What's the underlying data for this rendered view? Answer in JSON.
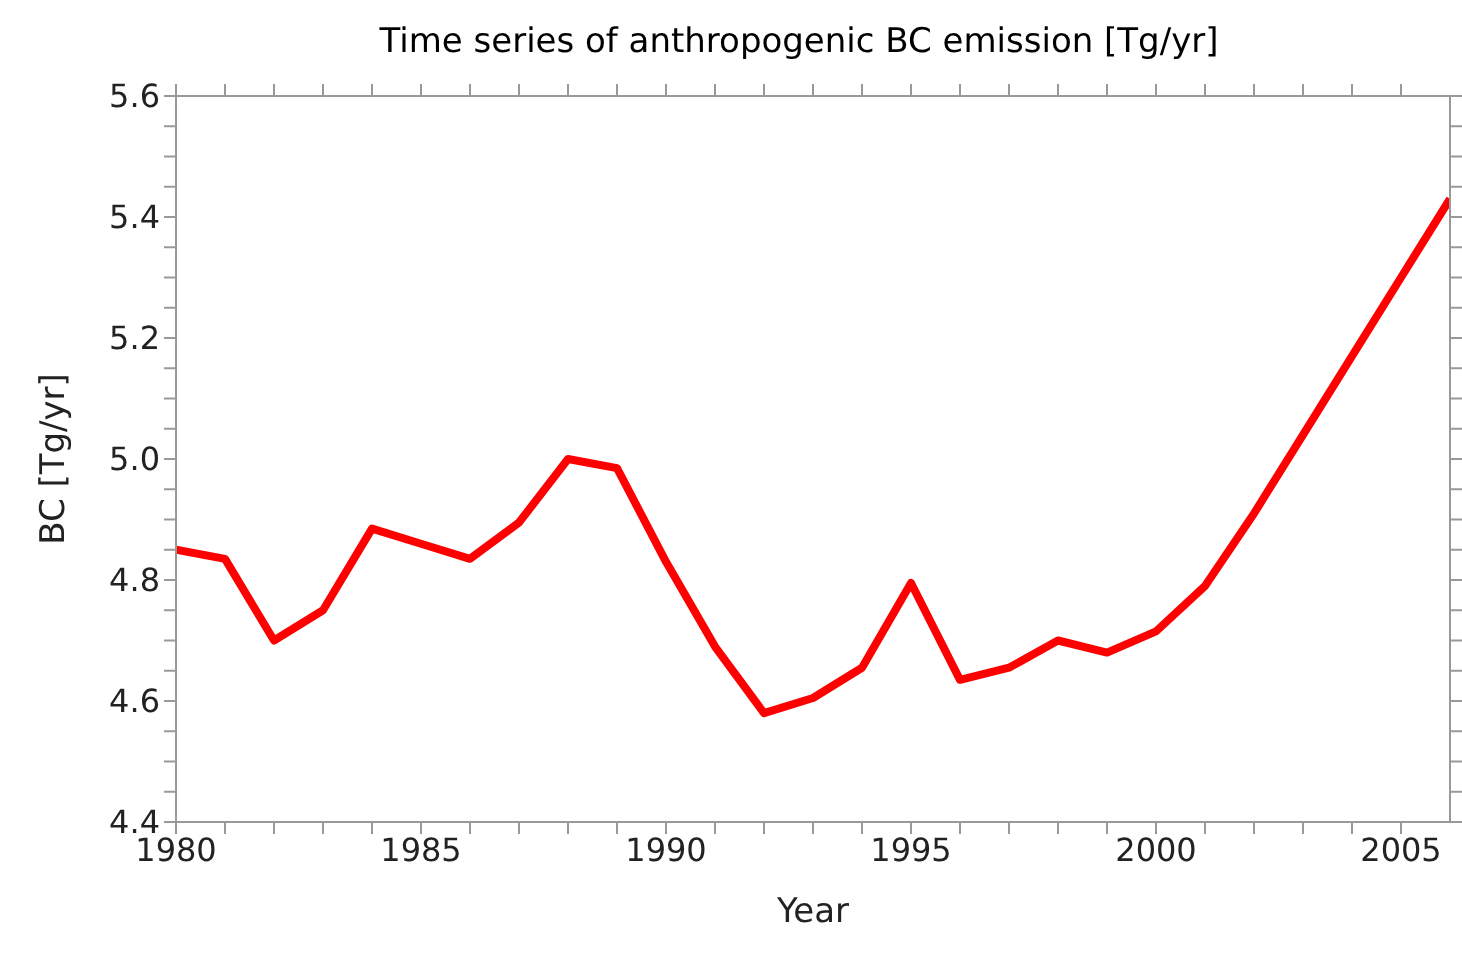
{
  "chart_data": {
    "type": "line",
    "title": "Time series of anthropogenic BC emission [Tg/yr]",
    "xlabel": "Year",
    "ylabel": "BC [Tg/yr]",
    "x": [
      1980,
      1981,
      1982,
      1983,
      1984,
      1985,
      1986,
      1987,
      1988,
      1989,
      1990,
      1991,
      1992,
      1993,
      1994,
      1995,
      1996,
      1997,
      1998,
      1999,
      2000,
      2001,
      2002,
      2003,
      2004,
      2005,
      2006
    ],
    "series": [
      {
        "color": "#ff0000",
        "values": [
          4.85,
          4.835,
          4.7,
          4.75,
          4.885,
          4.86,
          4.835,
          4.895,
          5.0,
          4.985,
          4.83,
          4.69,
          4.58,
          4.605,
          4.655,
          4.795,
          4.635,
          4.655,
          4.7,
          4.68,
          4.715,
          4.79,
          4.91,
          5.04,
          5.17,
          5.3,
          5.43
        ]
      }
    ],
    "xlim": [
      1980,
      2006
    ],
    "xticks": [
      1980,
      {
        "value": 1981,
        "label": null
      },
      {
        "value": 1982,
        "label": null
      },
      {
        "value": 1983,
        "label": null
      },
      {
        "value": 1984,
        "label": null
      },
      1985,
      {
        "value": 1986,
        "label": null
      },
      {
        "value": 1987,
        "label": null
      },
      {
        "value": 1988,
        "label": null
      },
      {
        "value": 1989,
        "label": null
      },
      1990,
      {
        "value": 1991,
        "label": null
      },
      {
        "value": 1992,
        "label": null
      },
      {
        "value": 1993,
        "label": null
      },
      {
        "value": 1994,
        "label": null
      },
      1995,
      {
        "value": 1996,
        "label": null
      },
      {
        "value": 1997,
        "label": null
      },
      {
        "value": 1998,
        "label": null
      },
      {
        "value": 1999,
        "label": null
      },
      2000,
      {
        "value": 2001,
        "label": null
      },
      {
        "value": 2002,
        "label": null
      },
      {
        "value": 2003,
        "label": null
      },
      {
        "value": 2004,
        "label": null
      },
      2005
    ],
    "ylim": [
      4.4,
      5.6
    ],
    "yticks": [
      {
        "value": 4.4,
        "label": "4.4"
      },
      {
        "value": 4.45,
        "label": null
      },
      {
        "value": 4.5,
        "label": null
      },
      {
        "value": 4.55,
        "label": null
      },
      {
        "value": 4.6,
        "label": "4.6"
      },
      {
        "value": 4.65,
        "label": null
      },
      {
        "value": 4.7,
        "label": null
      },
      {
        "value": 4.75,
        "label": null
      },
      {
        "value": 4.8,
        "label": "4.8"
      },
      {
        "value": 4.85,
        "label": null
      },
      {
        "value": 4.9,
        "label": null
      },
      {
        "value": 4.95,
        "label": null
      },
      {
        "value": 5.0,
        "label": "5.0"
      },
      {
        "value": 5.05,
        "label": null
      },
      {
        "value": 5.1,
        "label": null
      },
      {
        "value": 5.15,
        "label": null
      },
      {
        "value": 5.2,
        "label": "5.2"
      },
      {
        "value": 5.25,
        "label": null
      },
      {
        "value": 5.3,
        "label": null
      },
      {
        "value": 5.35,
        "label": null
      },
      {
        "value": 5.4,
        "label": "5.4"
      },
      {
        "value": 5.45,
        "label": null
      },
      {
        "value": 5.5,
        "label": null
      },
      {
        "value": 5.55,
        "label": null
      },
      {
        "value": 5.6,
        "label": "5.6"
      }
    ],
    "grid": false,
    "legend": false,
    "marker": "none",
    "line_style": "solid"
  }
}
